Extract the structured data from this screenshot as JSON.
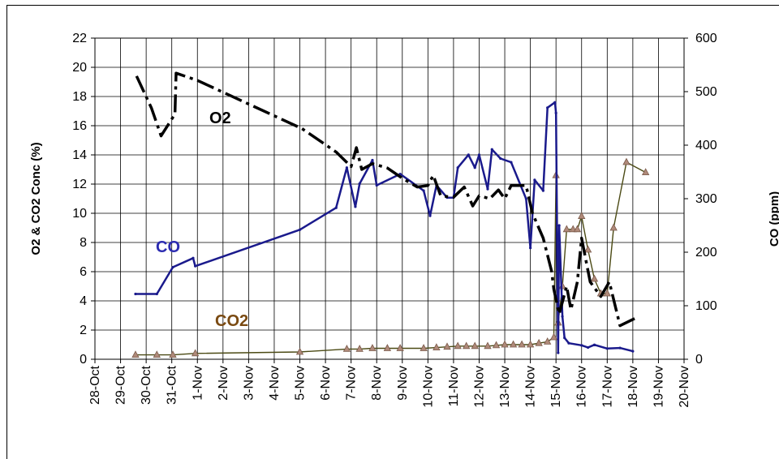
{
  "chart_data": {
    "type": "line",
    "title": "",
    "xlabel": "",
    "ylabel_left": "O2 & CO2 Conc (%)",
    "ylabel_right": "CO (ppm)",
    "xlim": [
      "28-Oct",
      "20-Nov"
    ],
    "ylim_left": [
      0,
      22
    ],
    "ylim_right": [
      0,
      600
    ],
    "grid": true,
    "x_tick_labels": [
      "28-Oct",
      "29-Oct",
      "30-Oct",
      "31-Oct",
      "1-Nov",
      "2-Nov",
      "3-Nov",
      "4-Nov",
      "5-Nov",
      "6-Nov",
      "7-Nov",
      "8-Nov",
      "9-Nov",
      "10-Nov",
      "11-Nov",
      "12-Nov",
      "13-Nov",
      "14-Nov",
      "15-Nov",
      "16-Nov",
      "17-Nov",
      "18-Nov",
      "19-Nov",
      "20-Nov"
    ],
    "y_ticks_left": [
      0,
      2,
      4,
      6,
      8,
      10,
      12,
      14,
      16,
      18,
      20,
      22
    ],
    "y_ticks_right": [
      0,
      100,
      200,
      300,
      400,
      500,
      600
    ],
    "series": [
      {
        "name": "O2",
        "axis": "left",
        "color": "#000000",
        "style": "dashed",
        "points": [
          [
            "29-Oct 15:00",
            19.4
          ],
          [
            "30-Oct 05:00",
            17.2
          ],
          [
            "30-Oct 14:00",
            15.3
          ],
          [
            "31-Oct 03:00",
            16.8
          ],
          [
            "31-Oct 04:00",
            19.6
          ],
          [
            "1-Nov 00:00",
            19.1
          ],
          [
            "5-Nov 02:00",
            15.8
          ],
          [
            "6-Nov 10:00",
            14.2
          ],
          [
            "7-Nov 00:00",
            13.2
          ],
          [
            "7-Nov 05:00",
            14.5
          ],
          [
            "7-Nov 10:00",
            13.0
          ],
          [
            "7-Nov 20:00",
            13.4
          ],
          [
            "8-Nov 10:00",
            13.1
          ],
          [
            "9-Nov 00:00",
            12.4
          ],
          [
            "9-Nov 14:00",
            11.8
          ],
          [
            "10-Nov 00:00",
            11.9
          ],
          [
            "10-Nov 05:00",
            12.6
          ],
          [
            "10-Nov 12:00",
            11.2
          ],
          [
            "11-Nov 00:00",
            11.1
          ],
          [
            "11-Nov 10:00",
            11.8
          ],
          [
            "11-Nov 18:00",
            10.5
          ],
          [
            "12-Nov 00:00",
            11.2
          ],
          [
            "12-Nov 10:00",
            11.0
          ],
          [
            "12-Nov 18:00",
            11.6
          ],
          [
            "13-Nov 00:00",
            11.0
          ],
          [
            "13-Nov 06:00",
            11.9
          ],
          [
            "13-Nov 20:00",
            11.9
          ],
          [
            "14-Nov 02:00",
            10.0
          ],
          [
            "14-Nov 12:00",
            8.3
          ],
          [
            "14-Nov 20:00",
            6.0
          ],
          [
            "14-Nov 22:00",
            4.8
          ],
          [
            "15-Nov 03:00",
            3.1
          ],
          [
            "15-Nov 10:00",
            5.0
          ],
          [
            "15-Nov 14:00",
            3.4
          ],
          [
            "15-Nov 20:00",
            5.3
          ],
          [
            "16-Nov 00:00",
            8.3
          ],
          [
            "16-Nov 08:00",
            5.3
          ],
          [
            "16-Nov 18:00",
            4.3
          ],
          [
            "17-Nov 02:00",
            5.3
          ],
          [
            "17-Nov 12:00",
            2.3
          ],
          [
            "18-Nov 02:00",
            2.8
          ]
        ]
      },
      {
        "name": "CO",
        "axis": "right",
        "color": "#1a1a8c",
        "style": "solid",
        "points": [
          [
            "29-Oct 14:00",
            122
          ],
          [
            "30-Oct 10:00",
            122
          ],
          [
            "31-Oct 01:00",
            172
          ],
          [
            "31-Oct 20:00",
            189
          ],
          [
            "31-Oct 22:00",
            174
          ],
          [
            "5-Nov 00:00",
            242
          ],
          [
            "6-Nov 10:00",
            283
          ],
          [
            "6-Nov 20:00",
            358
          ],
          [
            "7-Nov 04:00",
            285
          ],
          [
            "7-Nov 08:00",
            328
          ],
          [
            "7-Nov 20:00",
            372
          ],
          [
            "8-Nov 00:00",
            325
          ],
          [
            "8-Nov 22:00",
            346
          ],
          [
            "9-Nov 20:00",
            315
          ],
          [
            "10-Nov 02:00",
            268
          ],
          [
            "10-Nov 08:00",
            325
          ],
          [
            "10-Nov 18:00",
            302
          ],
          [
            "11-Nov 00:00",
            302
          ],
          [
            "11-Nov 04:00",
            358
          ],
          [
            "11-Nov 14:00",
            382
          ],
          [
            "11-Nov 20:00",
            358
          ],
          [
            "12-Nov 00:00",
            382
          ],
          [
            "12-Nov 08:00",
            318
          ],
          [
            "12-Nov 12:00",
            392
          ],
          [
            "12-Nov 20:00",
            375
          ],
          [
            "13-Nov 06:00",
            368
          ],
          [
            "13-Nov 20:00",
            300
          ],
          [
            "14-Nov 00:00",
            208
          ],
          [
            "14-Nov 04:00",
            335
          ],
          [
            "14-Nov 12:00",
            315
          ],
          [
            "14-Nov 16:00",
            470
          ],
          [
            "14-Nov 23:00",
            480
          ],
          [
            "15-Nov 00:00",
            460
          ],
          [
            "15-Nov 02:00",
            12
          ],
          [
            "15-Nov 03:00",
            250
          ],
          [
            "15-Nov 06:00",
            80
          ],
          [
            "15-Nov 08:00",
            40
          ],
          [
            "15-Nov 12:00",
            30
          ],
          [
            "16-Nov 00:00",
            26
          ],
          [
            "16-Nov 06:00",
            22
          ],
          [
            "16-Nov 12:00",
            27
          ],
          [
            "17-Nov 00:00",
            20
          ],
          [
            "17-Nov 12:00",
            21
          ],
          [
            "18-Nov 00:00",
            15
          ]
        ]
      },
      {
        "name": "CO2",
        "axis": "left",
        "color": "#8b7d70",
        "style": "solid with triangle markers",
        "points": [
          [
            "29-Oct 14:00",
            0.3
          ],
          [
            "30-Oct 10:00",
            0.3
          ],
          [
            "31-Oct 01:00",
            0.3
          ],
          [
            "31-Oct 22:00",
            0.4
          ],
          [
            "5-Nov 00:00",
            0.5
          ],
          [
            "6-Nov 20:00",
            0.7
          ],
          [
            "7-Nov 08:00",
            0.7
          ],
          [
            "7-Nov 20:00",
            0.75
          ],
          [
            "8-Nov 10:00",
            0.75
          ],
          [
            "8-Nov 22:00",
            0.75
          ],
          [
            "9-Nov 20:00",
            0.75
          ],
          [
            "10-Nov 08:00",
            0.8
          ],
          [
            "10-Nov 18:00",
            0.85
          ],
          [
            "11-Nov 04:00",
            0.9
          ],
          [
            "11-Nov 12:00",
            0.9
          ],
          [
            "11-Nov 20:00",
            0.9
          ],
          [
            "12-Nov 08:00",
            0.9
          ],
          [
            "12-Nov 16:00",
            0.95
          ],
          [
            "13-Nov 00:00",
            1.0
          ],
          [
            "13-Nov 08:00",
            1.0
          ],
          [
            "13-Nov 16:00",
            1.0
          ],
          [
            "14-Nov 00:00",
            1.0
          ],
          [
            "14-Nov 08:00",
            1.1
          ],
          [
            "14-Nov 16:00",
            1.2
          ],
          [
            "14-Nov 22:00",
            1.5
          ],
          [
            "15-Nov 00:00",
            12.6
          ],
          [
            "15-Nov 02:00",
            2.5
          ],
          [
            "15-Nov 06:00",
            5.0
          ],
          [
            "15-Nov 10:00",
            8.9
          ],
          [
            "15-Nov 16:00",
            8.9
          ],
          [
            "15-Nov 20:00",
            8.9
          ],
          [
            "16-Nov 00:00",
            9.8
          ],
          [
            "16-Nov 06:00",
            7.5
          ],
          [
            "16-Nov 12:00",
            5.5
          ],
          [
            "16-Nov 18:00",
            4.5
          ],
          [
            "17-Nov 00:00",
            4.5
          ],
          [
            "17-Nov 06:00",
            9.0
          ],
          [
            "17-Nov 18:00",
            13.5
          ],
          [
            "18-Nov 12:00",
            12.8
          ]
        ]
      }
    ],
    "annotations": [
      {
        "text": "O2",
        "color": "#000000"
      },
      {
        "text": "CO",
        "color": "#2b2bb0"
      },
      {
        "text": "CO2",
        "color": "#7a4a12"
      }
    ]
  }
}
